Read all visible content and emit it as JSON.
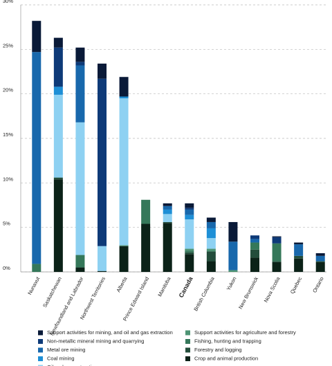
{
  "chart_data": {
    "type": "stacked_bar",
    "categories": [
      "Nunavut",
      "Saskatchewan",
      "Newfoundland and Labrador",
      "Northwest Territories",
      "Alberta",
      "Prince Edward Island",
      "Manitoba",
      "Canada",
      "British Columbia",
      "Yukon",
      "New Brunswick",
      "Nova Scotia",
      "Quebec",
      "Ontario"
    ],
    "series": [
      {
        "name": "Support activities for mining, and oil and gas extraction",
        "color": "#0a1a38",
        "values": [
          3.5,
          1.1,
          1.6,
          1.7,
          2.2,
          0,
          0.3,
          0.5,
          0.5,
          2.2,
          0,
          0.1,
          0.2,
          0.3
        ]
      },
      {
        "name": "Non-metallic mineral mining and quarrying",
        "color": "#0e3a78",
        "values": [
          0,
          4.4,
          0.4,
          18.8,
          0,
          0,
          0,
          0.2,
          0,
          0,
          0.4,
          0.7,
          0,
          0
        ]
      },
      {
        "name": "Metal ore mining",
        "color": "#1868ac",
        "values": [
          23.8,
          0,
          6.4,
          0,
          0,
          0,
          0.4,
          0.6,
          0.7,
          3.2,
          0.4,
          0,
          1.3,
          0.6
        ]
      },
      {
        "name": "Coal mining",
        "color": "#1e8fd6",
        "values": [
          0,
          0.9,
          0,
          0,
          0.2,
          0,
          0.5,
          0.5,
          1.1,
          0,
          0,
          0,
          0,
          0
        ]
      },
      {
        "name": "Oil and gas extraction",
        "color": "#8ed1f2",
        "values": [
          0,
          9.3,
          14.9,
          2.8,
          16.5,
          0,
          0.9,
          3.3,
          1.2,
          0,
          0,
          0,
          0,
          0
        ]
      },
      {
        "name": "Support activities for agriculture and forestry",
        "color": "#4e9474",
        "values": [
          0,
          0,
          0,
          0,
          0.1,
          0,
          0,
          0.2,
          0.3,
          0.2,
          0,
          0,
          0,
          0
        ]
      },
      {
        "name": "Fishing, hunting and trapping",
        "color": "#35785a",
        "values": [
          0.9,
          0,
          1.4,
          0,
          0,
          2.7,
          0,
          0.2,
          0,
          0,
          0.8,
          2.0,
          0,
          0
        ]
      },
      {
        "name": "Forestry and logging",
        "color": "#234d3b",
        "values": [
          0,
          0.2,
          0,
          0,
          0,
          0,
          0.1,
          0.2,
          1.1,
          0,
          0.9,
          0.1,
          0.3,
          0.1
        ]
      },
      {
        "name": "Crop and animal production",
        "color": "#0b2218",
        "values": [
          0,
          10.4,
          0.5,
          0.1,
          2.9,
          5.4,
          5.5,
          2.0,
          1.2,
          0,
          1.6,
          1.1,
          1.5,
          1.1
        ]
      }
    ],
    "ylim": [
      0,
      30
    ],
    "yticks": [
      {
        "value": 0,
        "label": "0%"
      },
      {
        "value": 5,
        "label": "5%"
      },
      {
        "value": 10,
        "label": "10%"
      },
      {
        "value": 15,
        "label": "15%"
      },
      {
        "value": 20,
        "label": "20%"
      },
      {
        "value": 25,
        "label": "25%"
      },
      {
        "value": 30,
        "label": "30%"
      }
    ],
    "grid": true
  }
}
